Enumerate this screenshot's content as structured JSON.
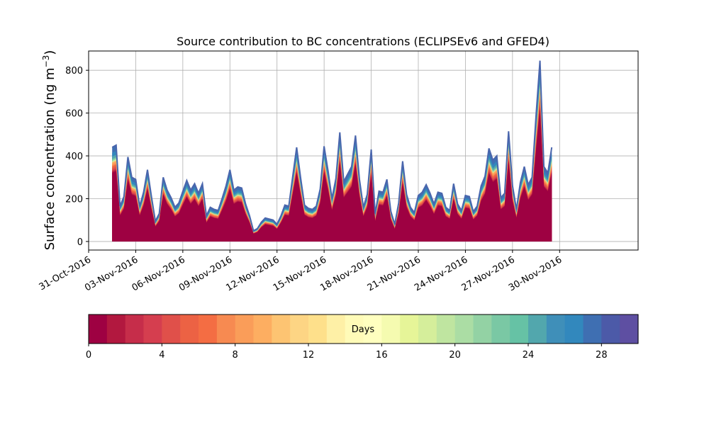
{
  "chart_data": {
    "type": "area",
    "title": "Source contribution to BC concentrations (ECLIPSEv6 and GFED4)",
    "ylabel_main": "Surface concentration (ng m",
    "ylabel_sup": "−3",
    "ylabel_close": ")",
    "xlabel": "",
    "grid": true,
    "x_start": "2016-10-31",
    "x_end": "2016-12-05",
    "xlim": [
      "2016-10-31",
      "2016-12-05"
    ],
    "ylim": [
      -40,
      890
    ],
    "x_ticks": [
      {
        "date": "2016-10-31",
        "label": "31-Oct-2016"
      },
      {
        "date": "2016-11-03",
        "label": "03-Nov-2016"
      },
      {
        "date": "2016-11-06",
        "label": "06-Nov-2016"
      },
      {
        "date": "2016-11-09",
        "label": "09-Nov-2016"
      },
      {
        "date": "2016-11-12",
        "label": "12-Nov-2016"
      },
      {
        "date": "2016-11-15",
        "label": "15-Nov-2016"
      },
      {
        "date": "2016-11-18",
        "label": "18-Nov-2016"
      },
      {
        "date": "2016-11-21",
        "label": "21-Nov-2016"
      },
      {
        "date": "2016-11-24",
        "label": "24-Nov-2016"
      },
      {
        "date": "2016-11-27",
        "label": "27-Nov-2016"
      },
      {
        "date": "2016-11-30",
        "label": "30-Nov-2016"
      }
    ],
    "y_ticks": [
      0,
      200,
      400,
      600,
      800
    ],
    "series_total": [
      [
        "2016-11-01T12:00",
        440
      ],
      [
        "2016-11-01T18:00",
        450
      ],
      [
        "2016-11-02T00:00",
        165
      ],
      [
        "2016-11-02T06:00",
        210
      ],
      [
        "2016-11-02T12:00",
        395
      ],
      [
        "2016-11-02T18:00",
        300
      ],
      [
        "2016-11-03T00:00",
        290
      ],
      [
        "2016-11-03T06:00",
        165
      ],
      [
        "2016-11-03T12:00",
        230
      ],
      [
        "2016-11-03T18:00",
        335
      ],
      [
        "2016-11-04T00:00",
        210
      ],
      [
        "2016-11-04T06:00",
        95
      ],
      [
        "2016-11-04T12:00",
        130
      ],
      [
        "2016-11-04T18:00",
        300
      ],
      [
        "2016-11-05T00:00",
        240
      ],
      [
        "2016-11-05T06:00",
        205
      ],
      [
        "2016-11-05T12:00",
        160
      ],
      [
        "2016-11-05T18:00",
        180
      ],
      [
        "2016-11-06T00:00",
        235
      ],
      [
        "2016-11-06T06:00",
        285
      ],
      [
        "2016-11-06T12:00",
        240
      ],
      [
        "2016-11-06T18:00",
        270
      ],
      [
        "2016-11-07T00:00",
        225
      ],
      [
        "2016-11-07T06:00",
        270
      ],
      [
        "2016-11-07T12:00",
        120
      ],
      [
        "2016-11-07T18:00",
        160
      ],
      [
        "2016-11-08T00:00",
        150
      ],
      [
        "2016-11-08T06:00",
        145
      ],
      [
        "2016-11-08T12:00",
        200
      ],
      [
        "2016-11-08T18:00",
        260
      ],
      [
        "2016-11-09T00:00",
        335
      ],
      [
        "2016-11-09T06:00",
        240
      ],
      [
        "2016-11-09T12:00",
        255
      ],
      [
        "2016-11-09T18:00",
        250
      ],
      [
        "2016-11-10T00:00",
        175
      ],
      [
        "2016-11-10T06:00",
        120
      ],
      [
        "2016-11-10T12:00",
        50
      ],
      [
        "2016-11-10T18:00",
        60
      ],
      [
        "2016-11-11T00:00",
        90
      ],
      [
        "2016-11-11T06:00",
        110
      ],
      [
        "2016-11-11T12:00",
        105
      ],
      [
        "2016-11-11T18:00",
        100
      ],
      [
        "2016-11-12T00:00",
        80
      ],
      [
        "2016-11-12T06:00",
        120
      ],
      [
        "2016-11-12T12:00",
        170
      ],
      [
        "2016-11-12T18:00",
        165
      ],
      [
        "2016-11-13T00:00",
        305
      ],
      [
        "2016-11-13T06:00",
        440
      ],
      [
        "2016-11-13T12:00",
        300
      ],
      [
        "2016-11-13T18:00",
        170
      ],
      [
        "2016-11-14T00:00",
        155
      ],
      [
        "2016-11-14T06:00",
        150
      ],
      [
        "2016-11-14T12:00",
        165
      ],
      [
        "2016-11-14T18:00",
        245
      ],
      [
        "2016-11-15T00:00",
        445
      ],
      [
        "2016-11-15T06:00",
        330
      ],
      [
        "2016-11-15T12:00",
        200
      ],
      [
        "2016-11-15T18:00",
        295
      ],
      [
        "2016-11-16T00:00",
        510
      ],
      [
        "2016-11-16T06:00",
        280
      ],
      [
        "2016-11-16T12:00",
        315
      ],
      [
        "2016-11-16T18:00",
        350
      ],
      [
        "2016-11-17T00:00",
        495
      ],
      [
        "2016-11-17T06:00",
        290
      ],
      [
        "2016-11-17T12:00",
        160
      ],
      [
        "2016-11-17T18:00",
        220
      ],
      [
        "2016-11-18T00:00",
        430
      ],
      [
        "2016-11-18T06:00",
        130
      ],
      [
        "2016-11-18T12:00",
        235
      ],
      [
        "2016-11-18T18:00",
        230
      ],
      [
        "2016-11-19T00:00",
        290
      ],
      [
        "2016-11-19T06:00",
        140
      ],
      [
        "2016-11-19T12:00",
        80
      ],
      [
        "2016-11-19T18:00",
        180
      ],
      [
        "2016-11-20T00:00",
        375
      ],
      [
        "2016-11-20T06:00",
        220
      ],
      [
        "2016-11-20T12:00",
        160
      ],
      [
        "2016-11-20T18:00",
        135
      ],
      [
        "2016-11-21T00:00",
        215
      ],
      [
        "2016-11-21T06:00",
        230
      ],
      [
        "2016-11-21T12:00",
        265
      ],
      [
        "2016-11-21T18:00",
        225
      ],
      [
        "2016-11-22T00:00",
        175
      ],
      [
        "2016-11-22T06:00",
        230
      ],
      [
        "2016-11-22T12:00",
        225
      ],
      [
        "2016-11-22T18:00",
        160
      ],
      [
        "2016-11-23T00:00",
        145
      ],
      [
        "2016-11-23T06:00",
        270
      ],
      [
        "2016-11-23T12:00",
        175
      ],
      [
        "2016-11-23T18:00",
        145
      ],
      [
        "2016-11-24T00:00",
        215
      ],
      [
        "2016-11-24T06:00",
        210
      ],
      [
        "2016-11-24T12:00",
        140
      ],
      [
        "2016-11-24T18:00",
        165
      ],
      [
        "2016-11-25T00:00",
        260
      ],
      [
        "2016-11-25T06:00",
        305
      ],
      [
        "2016-11-25T12:00",
        435
      ],
      [
        "2016-11-25T18:00",
        380
      ],
      [
        "2016-11-26T00:00",
        400
      ],
      [
        "2016-11-26T06:00",
        205
      ],
      [
        "2016-11-26T12:00",
        225
      ],
      [
        "2016-11-26T18:00",
        515
      ],
      [
        "2016-11-27T00:00",
        260
      ],
      [
        "2016-11-27T06:00",
        150
      ],
      [
        "2016-11-27T12:00",
        275
      ],
      [
        "2016-11-27T18:00",
        350
      ],
      [
        "2016-11-28T00:00",
        265
      ],
      [
        "2016-11-28T06:00",
        300
      ],
      [
        "2016-11-28T12:00",
        590
      ],
      [
        "2016-11-28T18:00",
        845
      ],
      [
        "2016-11-29T00:00",
        350
      ],
      [
        "2016-11-29T06:00",
        320
      ],
      [
        "2016-11-29T12:00",
        440
      ]
    ],
    "colorbar": {
      "label": "Days",
      "range": [
        0,
        30
      ],
      "n_bins": 30,
      "ticks": [
        0,
        4,
        8,
        12,
        16,
        20,
        24,
        28
      ],
      "colormap": "Spectral",
      "colors": [
        "#9e0142",
        "#b2183f",
        "#c62d4a",
        "#d53e4f",
        "#e0504a",
        "#ec6244",
        "#f46d43",
        "#f78a51",
        "#fa9d59",
        "#fdae61",
        "#fdc472",
        "#fdd584",
        "#fee08b",
        "#fef0a6",
        "#fffbb8",
        "#ffffbf",
        "#f5fbb0",
        "#e6f598",
        "#d5ee9b",
        "#bfe5a0",
        "#abdda4",
        "#93d2a4",
        "#7ac8a4",
        "#66c2a5",
        "#52a7ad",
        "#3f8fb9",
        "#3288bd",
        "#3f6fb2",
        "#4c5aa8",
        "#5e4fa2"
      ]
    }
  }
}
